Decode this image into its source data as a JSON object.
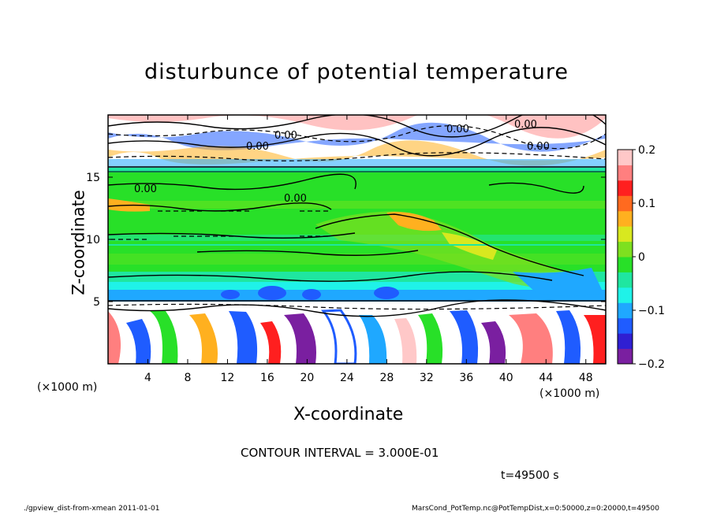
{
  "chart_data": {
    "type": "heatmap",
    "title": "disturbunce of potential temperature",
    "xlabel": "X-coordinate",
    "ylabel": "Z-coordinate",
    "x_unit_left": "(×1000 m)",
    "x_unit_right": "(×1000 m)",
    "xlim": [
      0,
      50
    ],
    "ylim": [
      0,
      20
    ],
    "x_ticks": [
      4,
      8,
      12,
      16,
      20,
      24,
      28,
      32,
      36,
      40,
      44,
      48
    ],
    "y_ticks": [
      5,
      10,
      15
    ],
    "colorbar": {
      "range": [
        -0.2,
        0.2
      ],
      "ticks": [
        "0.2",
        "0.1",
        "0",
        "−0.1",
        "−0.2"
      ],
      "colors": [
        "#7a1fa0",
        "#2f1fd2",
        "#1f5cff",
        "#1fa8ff",
        "#1ff2e8",
        "#1fe6a0",
        "#28e028",
        "#7ee01f",
        "#d8e81f",
        "#ffb01f",
        "#ff6a1f",
        "#ff1f1f",
        "#ff7f7f",
        "#ffc8c8"
      ]
    },
    "contour_labels": [
      "0.00",
      "0.00",
      "0.00",
      "0.00",
      "0.00",
      "0.00",
      "0.00"
    ],
    "contour_interval": "CONTOUR INTERVAL = 3.000E-01",
    "time": "t=49500 s"
  },
  "footer": {
    "left": "./gpview_dist-from-xmean 2011-01-01",
    "right": "MarsCond_PotTemp.nc@PotTempDist,x=0:50000,z=0:20000,t=49500"
  }
}
